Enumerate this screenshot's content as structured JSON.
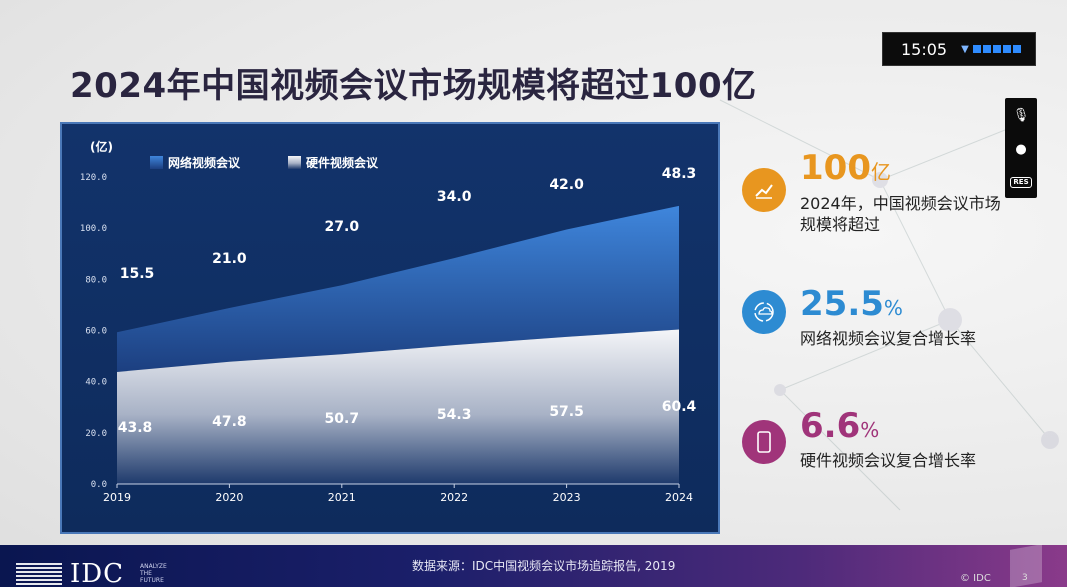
{
  "title": "2024年中国视频会议市场规模将超过100亿",
  "clock": {
    "time": "15:05"
  },
  "colors": {
    "accent_orange": "#e8961f",
    "accent_blue": "#2d8bd2",
    "accent_purple": "#a0347a"
  },
  "stats": [
    {
      "icon": "trend-up-icon",
      "value": "100",
      "unit": "亿",
      "desc": "2024年，中国视频会议市场规模将超过"
    },
    {
      "icon": "cloud-sync-icon",
      "value": "25.5",
      "unit": "%",
      "desc": "网络视频会议复合增长率"
    },
    {
      "icon": "phone-icon",
      "value": "6.6",
      "unit": "%",
      "desc": "硬件视频会议复合增长率"
    }
  ],
  "footer": {
    "source": "数据来源：IDC中国视频会议市场追踪报告, 2019",
    "logo": "IDC",
    "tagline": "ANALYZE THE FUTURE",
    "copyright": "© IDC",
    "page": "3"
  },
  "chart_data": {
    "type": "area",
    "stacked": true,
    "unit_label": "(亿)",
    "x": [
      "2019",
      "2020",
      "2021",
      "2022",
      "2023",
      "2024"
    ],
    "yticks": [
      "0.0",
      "20.0",
      "40.0",
      "60.0",
      "80.0",
      "100.0",
      "120.0"
    ],
    "ylim": [
      0,
      120
    ],
    "legend_position": "top-left",
    "series": [
      {
        "name": "网络视频会议",
        "values": [
          15.5,
          21.0,
          27.0,
          34.0,
          42.0,
          48.3
        ],
        "labels": [
          "15.5",
          "21.0",
          "27.0",
          "34.0",
          "42.0",
          "48.3"
        ],
        "color": "#2f6cc4"
      },
      {
        "name": "硬件视频会议",
        "values": [
          43.8,
          47.8,
          50.7,
          54.3,
          57.5,
          60.4
        ],
        "labels": [
          "43.8",
          "47.8",
          "50.7",
          "54.3",
          "57.5",
          "60.4"
        ],
        "color": "#e8ebf2"
      }
    ]
  }
}
